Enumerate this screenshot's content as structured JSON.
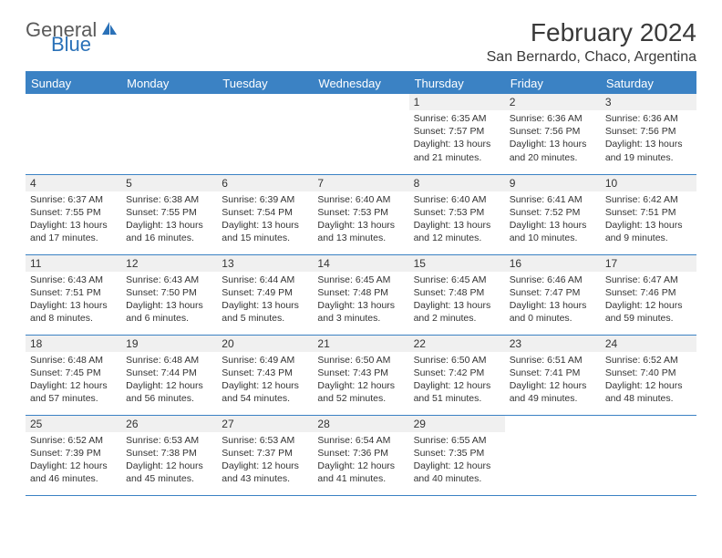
{
  "logo": {
    "general": "General",
    "blue": "Blue"
  },
  "title": "February 2024",
  "location": "San Bernardo, Chaco, Argentina",
  "headers": [
    "Sunday",
    "Monday",
    "Tuesday",
    "Wednesday",
    "Thursday",
    "Friday",
    "Saturday"
  ],
  "colors": {
    "header_bg": "#3b82c4",
    "header_text": "#ffffff",
    "shaded_bg": "#f0f0f0",
    "border": "#3b82c4",
    "logo_blue": "#2a71b8",
    "logo_gray": "#5a5a5a"
  },
  "weeks": [
    [
      {
        "n": "",
        "sr": "",
        "ss": "",
        "dl": ""
      },
      {
        "n": "",
        "sr": "",
        "ss": "",
        "dl": ""
      },
      {
        "n": "",
        "sr": "",
        "ss": "",
        "dl": ""
      },
      {
        "n": "",
        "sr": "",
        "ss": "",
        "dl": ""
      },
      {
        "n": "1",
        "sr": "Sunrise: 6:35 AM",
        "ss": "Sunset: 7:57 PM",
        "dl": "Daylight: 13 hours and 21 minutes."
      },
      {
        "n": "2",
        "sr": "Sunrise: 6:36 AM",
        "ss": "Sunset: 7:56 PM",
        "dl": "Daylight: 13 hours and 20 minutes."
      },
      {
        "n": "3",
        "sr": "Sunrise: 6:36 AM",
        "ss": "Sunset: 7:56 PM",
        "dl": "Daylight: 13 hours and 19 minutes."
      }
    ],
    [
      {
        "n": "4",
        "sr": "Sunrise: 6:37 AM",
        "ss": "Sunset: 7:55 PM",
        "dl": "Daylight: 13 hours and 17 minutes."
      },
      {
        "n": "5",
        "sr": "Sunrise: 6:38 AM",
        "ss": "Sunset: 7:55 PM",
        "dl": "Daylight: 13 hours and 16 minutes."
      },
      {
        "n": "6",
        "sr": "Sunrise: 6:39 AM",
        "ss": "Sunset: 7:54 PM",
        "dl": "Daylight: 13 hours and 15 minutes."
      },
      {
        "n": "7",
        "sr": "Sunrise: 6:40 AM",
        "ss": "Sunset: 7:53 PM",
        "dl": "Daylight: 13 hours and 13 minutes."
      },
      {
        "n": "8",
        "sr": "Sunrise: 6:40 AM",
        "ss": "Sunset: 7:53 PM",
        "dl": "Daylight: 13 hours and 12 minutes."
      },
      {
        "n": "9",
        "sr": "Sunrise: 6:41 AM",
        "ss": "Sunset: 7:52 PM",
        "dl": "Daylight: 13 hours and 10 minutes."
      },
      {
        "n": "10",
        "sr": "Sunrise: 6:42 AM",
        "ss": "Sunset: 7:51 PM",
        "dl": "Daylight: 13 hours and 9 minutes."
      }
    ],
    [
      {
        "n": "11",
        "sr": "Sunrise: 6:43 AM",
        "ss": "Sunset: 7:51 PM",
        "dl": "Daylight: 13 hours and 8 minutes."
      },
      {
        "n": "12",
        "sr": "Sunrise: 6:43 AM",
        "ss": "Sunset: 7:50 PM",
        "dl": "Daylight: 13 hours and 6 minutes."
      },
      {
        "n": "13",
        "sr": "Sunrise: 6:44 AM",
        "ss": "Sunset: 7:49 PM",
        "dl": "Daylight: 13 hours and 5 minutes."
      },
      {
        "n": "14",
        "sr": "Sunrise: 6:45 AM",
        "ss": "Sunset: 7:48 PM",
        "dl": "Daylight: 13 hours and 3 minutes."
      },
      {
        "n": "15",
        "sr": "Sunrise: 6:45 AM",
        "ss": "Sunset: 7:48 PM",
        "dl": "Daylight: 13 hours and 2 minutes."
      },
      {
        "n": "16",
        "sr": "Sunrise: 6:46 AM",
        "ss": "Sunset: 7:47 PM",
        "dl": "Daylight: 13 hours and 0 minutes."
      },
      {
        "n": "17",
        "sr": "Sunrise: 6:47 AM",
        "ss": "Sunset: 7:46 PM",
        "dl": "Daylight: 12 hours and 59 minutes."
      }
    ],
    [
      {
        "n": "18",
        "sr": "Sunrise: 6:48 AM",
        "ss": "Sunset: 7:45 PM",
        "dl": "Daylight: 12 hours and 57 minutes."
      },
      {
        "n": "19",
        "sr": "Sunrise: 6:48 AM",
        "ss": "Sunset: 7:44 PM",
        "dl": "Daylight: 12 hours and 56 minutes."
      },
      {
        "n": "20",
        "sr": "Sunrise: 6:49 AM",
        "ss": "Sunset: 7:43 PM",
        "dl": "Daylight: 12 hours and 54 minutes."
      },
      {
        "n": "21",
        "sr": "Sunrise: 6:50 AM",
        "ss": "Sunset: 7:43 PM",
        "dl": "Daylight: 12 hours and 52 minutes."
      },
      {
        "n": "22",
        "sr": "Sunrise: 6:50 AM",
        "ss": "Sunset: 7:42 PM",
        "dl": "Daylight: 12 hours and 51 minutes."
      },
      {
        "n": "23",
        "sr": "Sunrise: 6:51 AM",
        "ss": "Sunset: 7:41 PM",
        "dl": "Daylight: 12 hours and 49 minutes."
      },
      {
        "n": "24",
        "sr": "Sunrise: 6:52 AM",
        "ss": "Sunset: 7:40 PM",
        "dl": "Daylight: 12 hours and 48 minutes."
      }
    ],
    [
      {
        "n": "25",
        "sr": "Sunrise: 6:52 AM",
        "ss": "Sunset: 7:39 PM",
        "dl": "Daylight: 12 hours and 46 minutes."
      },
      {
        "n": "26",
        "sr": "Sunrise: 6:53 AM",
        "ss": "Sunset: 7:38 PM",
        "dl": "Daylight: 12 hours and 45 minutes."
      },
      {
        "n": "27",
        "sr": "Sunrise: 6:53 AM",
        "ss": "Sunset: 7:37 PM",
        "dl": "Daylight: 12 hours and 43 minutes."
      },
      {
        "n": "28",
        "sr": "Sunrise: 6:54 AM",
        "ss": "Sunset: 7:36 PM",
        "dl": "Daylight: 12 hours and 41 minutes."
      },
      {
        "n": "29",
        "sr": "Sunrise: 6:55 AM",
        "ss": "Sunset: 7:35 PM",
        "dl": "Daylight: 12 hours and 40 minutes."
      },
      {
        "n": "",
        "sr": "",
        "ss": "",
        "dl": ""
      },
      {
        "n": "",
        "sr": "",
        "ss": "",
        "dl": ""
      }
    ]
  ]
}
